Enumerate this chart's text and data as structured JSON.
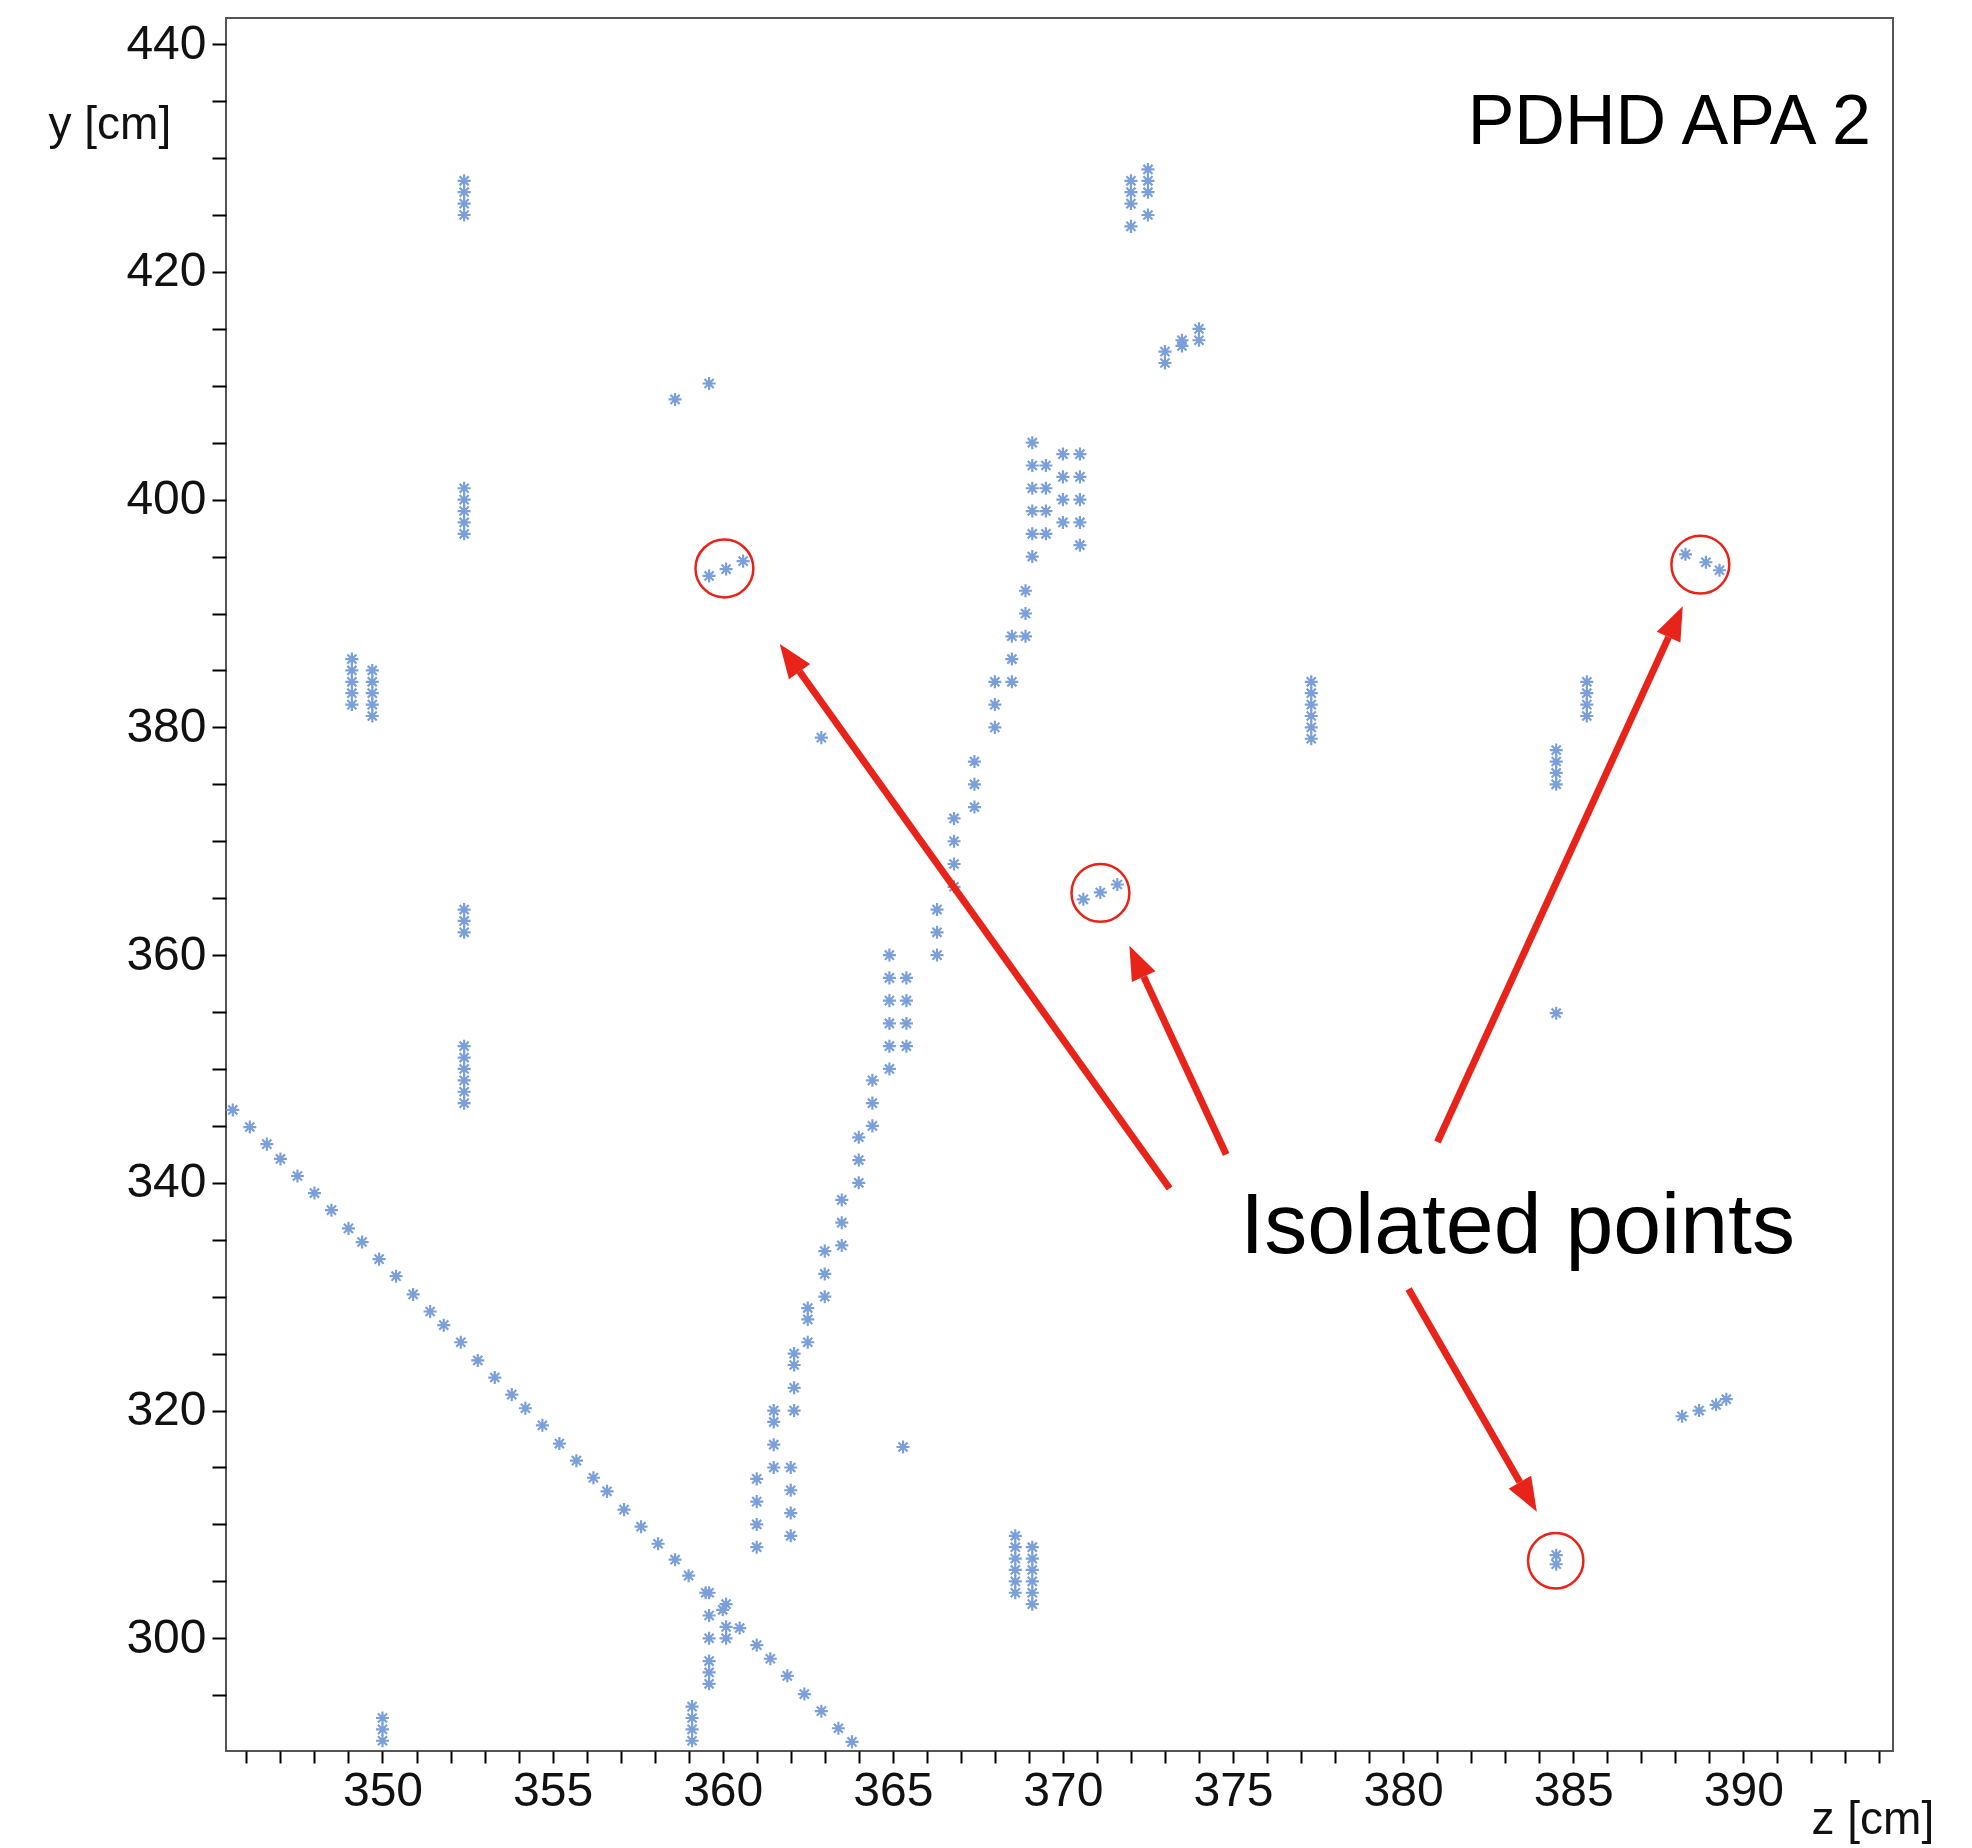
{
  "chart_data": {
    "type": "scatter",
    "xlabel": "z [cm]",
    "ylabel": "y [cm]",
    "color": "#7b9fd9",
    "marker": "cross",
    "grid": false,
    "annotations": [
      "PDHD APA 2",
      "Isolated points"
    ],
    "xlim": [
      345.4,
      394.4
    ],
    "ylim": [
      290.1,
      442.3
    ],
    "xticks": [
      {
        "value": 346,
        "label": null
      },
      {
        "value": 347,
        "label": null
      },
      {
        "value": 348,
        "label": null
      },
      {
        "value": 349,
        "label": null
      },
      350,
      {
        "value": 351,
        "label": null
      },
      {
        "value": 352,
        "label": null
      },
      {
        "value": 353,
        "label": null
      },
      {
        "value": 354,
        "label": null
      },
      355,
      {
        "value": 356,
        "label": null
      },
      {
        "value": 357,
        "label": null
      },
      {
        "value": 358,
        "label": null
      },
      {
        "value": 359,
        "label": null
      },
      360,
      {
        "value": 361,
        "label": null
      },
      {
        "value": 362,
        "label": null
      },
      {
        "value": 363,
        "label": null
      },
      {
        "value": 364,
        "label": null
      },
      365,
      {
        "value": 366,
        "label": null
      },
      {
        "value": 367,
        "label": null
      },
      {
        "value": 368,
        "label": null
      },
      {
        "value": 369,
        "label": null
      },
      370,
      {
        "value": 371,
        "label": null
      },
      {
        "value": 372,
        "label": null
      },
      {
        "value": 373,
        "label": null
      },
      {
        "value": 374,
        "label": null
      },
      375,
      {
        "value": 376,
        "label": null
      },
      {
        "value": 377,
        "label": null
      },
      {
        "value": 378,
        "label": null
      },
      {
        "value": 379,
        "label": null
      },
      380,
      {
        "value": 381,
        "label": null
      },
      {
        "value": 382,
        "label": null
      },
      {
        "value": 383,
        "label": null
      },
      {
        "value": 384,
        "label": null
      },
      385,
      {
        "value": 386,
        "label": null
      },
      {
        "value": 387,
        "label": null
      },
      {
        "value": 388,
        "label": null
      },
      {
        "value": 389,
        "label": null
      },
      390,
      {
        "value": 391,
        "label": null
      },
      {
        "value": 392,
        "label": null
      },
      {
        "value": 393,
        "label": null
      },
      {
        "value": 394,
        "label": null
      }
    ],
    "yticks": [
      {
        "value": 295,
        "label": null
      },
      300,
      {
        "value": 305,
        "label": null
      },
      {
        "value": 310,
        "label": null
      },
      {
        "value": 315,
        "label": null
      },
      320,
      {
        "value": 325,
        "label": null
      },
      {
        "value": 330,
        "label": null
      },
      {
        "value": 335,
        "label": null
      },
      340,
      {
        "value": 345,
        "label": null
      },
      {
        "value": 350,
        "label": null
      },
      {
        "value": 355,
        "label": null
      },
      360,
      {
        "value": 365,
        "label": null
      },
      {
        "value": 370,
        "label": null
      },
      {
        "value": 375,
        "label": null
      },
      380,
      {
        "value": 385,
        "label": null
      },
      {
        "value": 390,
        "label": null
      },
      {
        "value": 395,
        "label": null
      },
      400,
      {
        "value": 405,
        "label": null
      },
      {
        "value": 410,
        "label": null
      },
      {
        "value": 415,
        "label": null
      },
      420,
      {
        "value": 425,
        "label": null
      },
      {
        "value": 430,
        "label": null
      },
      {
        "value": 435,
        "label": null
      },
      440
    ],
    "x": [
      352.4,
      352.4,
      352.4,
      352.4,
      352.4,
      352.4,
      352.4,
      352.4,
      352.4,
      352.4,
      352.4,
      352.4,
      352.4,
      352.4,
      352.4,
      352.4,
      352.4,
      352.4,
      349.1,
      349.1,
      349.1,
      349.1,
      349.1,
      349.7,
      349.7,
      349.7,
      349.7,
      349.7,
      350,
      350,
      350,
      358.6,
      359.6,
      359.6,
      360.1,
      360.6,
      362.9,
      365.3,
      370.6,
      371.1,
      371.6,
      372,
      372,
      372,
      372,
      372.5,
      372.5,
      372.5,
      372.5,
      373,
      373.5,
      374,
      374,
      373,
      373.5,
      377.3,
      377.3,
      377.3,
      377.3,
      377.3,
      377.3,
      384.5,
      384.5,
      384.5,
      384.5,
      385.4,
      385.4,
      385.4,
      385.4,
      384.5,
      384.5,
      384.5,
      388.3,
      388.9,
      389.3,
      388.2,
      388.7,
      389.2,
      389.5,
      368.6,
      368.6,
      368.6,
      368.6,
      368.6,
      368.6,
      369.1,
      369.1,
      369.1,
      369.1,
      369.1,
      369.1,
      359.1,
      359.1,
      359.1,
      359.1,
      359.6,
      359.6,
      359.6,
      359.6,
      359.6,
      359.6,
      360.1,
      360.1,
      360.1,
      361.0,
      361.0,
      361.0,
      361.0,
      361.5,
      361.5,
      361.5,
      361.5,
      362.0,
      362.0,
      362.0,
      362.0,
      362.1,
      362.1,
      362.1,
      362.1,
      362.5,
      362.5,
      362.5,
      363.0,
      363.0,
      363.0,
      363.5,
      363.5,
      363.5,
      364.0,
      364.0,
      364.0,
      364.4,
      364.4,
      364.4,
      364.9,
      364.9,
      364.9,
      364.9,
      364.9,
      364.9,
      365.4,
      365.4,
      365.4,
      365.4,
      366.3,
      366.3,
      366.3,
      366.8,
      366.8,
      366.8,
      366.8,
      367.4,
      367.4,
      367.4,
      368.0,
      368.0,
      368.0,
      368.5,
      368.5,
      368.5,
      368.9,
      368.9,
      368.9,
      369.1,
      369.1,
      369.1,
      369.1,
      369.1,
      369.1,
      369.5,
      369.5,
      369.5,
      369.5,
      370.0,
      370.0,
      370.0,
      370.0,
      370.5,
      370.5,
      370.5,
      370.5,
      370.5,
      345.6,
      346.1,
      346.6,
      347.0,
      347.5,
      348.0,
      348.5,
      349.0,
      349.4,
      349.9,
      350.4,
      350.9,
      351.4,
      351.8,
      352.3,
      352.8,
      353.3,
      353.8,
      354.2,
      354.7,
      355.2,
      355.7,
      356.2,
      356.6,
      357.1,
      357.6,
      358.1,
      358.6,
      359.0,
      359.5,
      360.0,
      360.5,
      361.0,
      361.4,
      361.9,
      362.4,
      362.9,
      363.4,
      363.8
    ],
    "values": [
      428,
      427,
      426,
      425,
      401,
      400,
      399,
      398,
      397,
      364,
      363,
      362,
      352,
      351,
      350,
      349,
      348,
      347,
      386,
      385,
      384,
      383,
      382,
      385,
      384,
      383,
      382,
      381,
      293,
      292,
      291,
      408.8,
      410.2,
      393.3,
      393.9,
      394.6,
      379.1,
      316.8,
      364.9,
      365.5,
      366.2,
      428,
      427,
      426,
      424,
      429,
      428,
      427,
      425,
      413,
      413.5,
      414,
      415,
      412,
      414,
      384,
      383,
      382,
      381,
      380,
      379,
      378,
      377,
      376,
      375,
      384,
      383,
      382,
      381,
      354.9,
      307.3,
      306.5,
      395.2,
      394.5,
      393.8,
      319.5,
      320,
      320.5,
      321,
      309,
      308,
      307,
      306,
      305,
      304,
      308,
      307,
      306,
      305,
      304,
      303,
      291,
      292,
      293,
      294,
      296,
      297,
      298,
      300,
      302,
      304,
      300,
      301,
      303,
      308,
      310,
      312,
      314,
      315,
      317,
      319,
      320,
      309,
      311,
      313,
      315,
      320,
      322,
      324,
      325,
      326,
      328,
      329,
      330,
      332,
      334,
      334.5,
      336.5,
      338.5,
      340,
      342,
      344,
      345,
      347,
      349,
      350,
      352,
      354,
      356,
      358,
      360,
      352,
      354,
      356,
      358,
      360,
      362,
      364,
      366,
      368,
      370,
      372,
      373,
      375,
      377,
      380,
      382,
      384,
      384,
      386,
      388,
      388,
      390,
      392,
      395,
      397,
      399,
      401,
      403,
      405,
      397,
      399,
      401,
      403,
      398,
      400,
      402,
      404,
      396,
      398,
      400,
      402,
      404,
      346.4,
      344.9,
      343.4,
      342.1,
      340.6,
      339.1,
      337.6,
      336.0,
      334.8,
      333.3,
      331.8,
      330.2,
      328.7,
      327.5,
      326.0,
      324.4,
      322.9,
      321.4,
      320.2,
      318.7,
      317.1,
      315.6,
      314.1,
      312.9,
      311.3,
      309.8,
      308.3,
      306.9,
      305.5,
      304.0,
      302.5,
      300.9,
      299.4,
      298.2,
      296.7,
      295.1,
      293.6,
      292.1,
      290.9
    ]
  }
}
